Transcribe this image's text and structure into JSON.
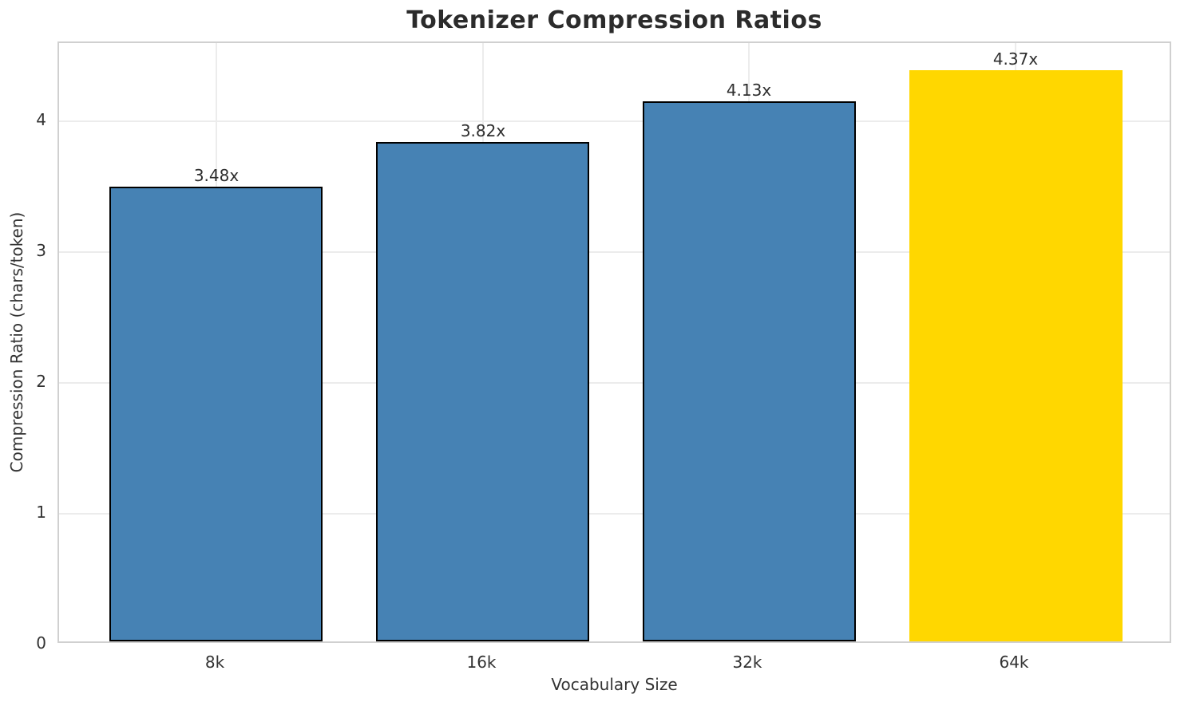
{
  "chart_data": {
    "type": "bar",
    "title": "Tokenizer Compression Ratios",
    "xlabel": "Vocabulary Size",
    "ylabel": "Compression Ratio (chars/token)",
    "categories": [
      "8k",
      "16k",
      "32k",
      "64k"
    ],
    "values": [
      3.48,
      3.82,
      4.13,
      4.37
    ],
    "bar_labels": [
      "3.48x",
      "3.82x",
      "4.13x",
      "4.37x"
    ],
    "series": [
      {
        "name": "Compression Ratio",
        "values": [
          3.48,
          3.82,
          4.13,
          4.37
        ]
      }
    ],
    "bar_colors": [
      "#4682B4",
      "#4682B4",
      "#4682B4",
      "#FFD700"
    ],
    "bar_edge_colors": [
      "#000000",
      "#000000",
      "#000000",
      "none"
    ],
    "yticks": [
      "0",
      "1",
      "2",
      "3",
      "4"
    ],
    "ytick_values": [
      0,
      1,
      2,
      3,
      4
    ],
    "ylim": [
      0,
      4.6
    ],
    "grid": true,
    "grid_color": "#ececec",
    "spine_color": "#d0d0d0",
    "background": "#ffffff",
    "title_color": "#2b2b2b",
    "text_color": "#333333",
    "legend_position": "none"
  }
}
